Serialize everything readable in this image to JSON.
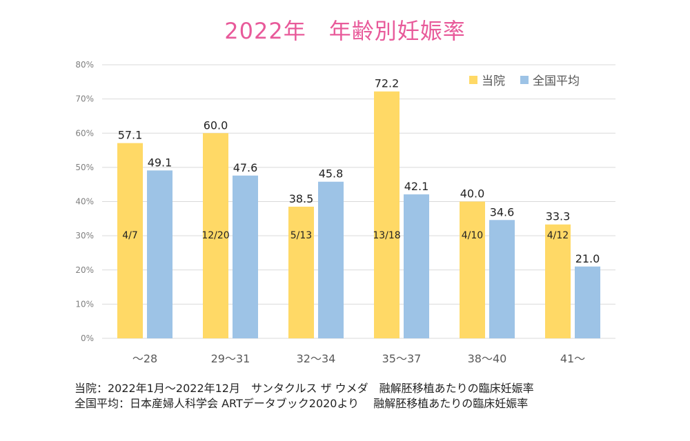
{
  "chart_data": {
    "type": "bar",
    "title": "2022年　年齢別妊娠率",
    "categories": [
      "～28",
      "29～31",
      "32～34",
      "35～37",
      "38～40",
      "41～"
    ],
    "series": [
      {
        "name": "当院",
        "color": "#ffd966",
        "values": [
          57.1,
          60.0,
          38.5,
          72.2,
          40.0,
          33.3
        ],
        "value_labels": [
          "57.1",
          "60.0",
          "38.5",
          "72.2",
          "40.0",
          "33.3"
        ],
        "inner_labels": [
          "4/7",
          "12/20",
          "5/13",
          "13/18",
          "4/10",
          "4/12"
        ]
      },
      {
        "name": "全国平均",
        "color": "#9dc3e6",
        "values": [
          49.1,
          47.6,
          45.8,
          42.1,
          34.6,
          21.0
        ],
        "value_labels": [
          "49.1",
          "47.6",
          "45.8",
          "42.1",
          "34.6",
          "21.0"
        ]
      }
    ],
    "ylim": [
      0,
      80
    ],
    "yticks": [
      "0%",
      "10%",
      "20%",
      "30%",
      "40%",
      "50%",
      "60%",
      "70%",
      "80%"
    ],
    "grid": true,
    "legend_position": "top-right",
    "xlabel": "",
    "ylabel": ""
  },
  "notes": [
    "当院：2022年1月～2022年12月　サンタクルス ザ ウメダ　融解胚移植あたりの臨床妊娠率",
    "全国平均：日本産婦人科学会 ARTデータブック2020より　 融解胚移植あたりの臨床妊娠率"
  ],
  "colors": {
    "title": "#e85a9a",
    "grid": "#d9d9d9",
    "axis_text": "#7f7f7f"
  }
}
